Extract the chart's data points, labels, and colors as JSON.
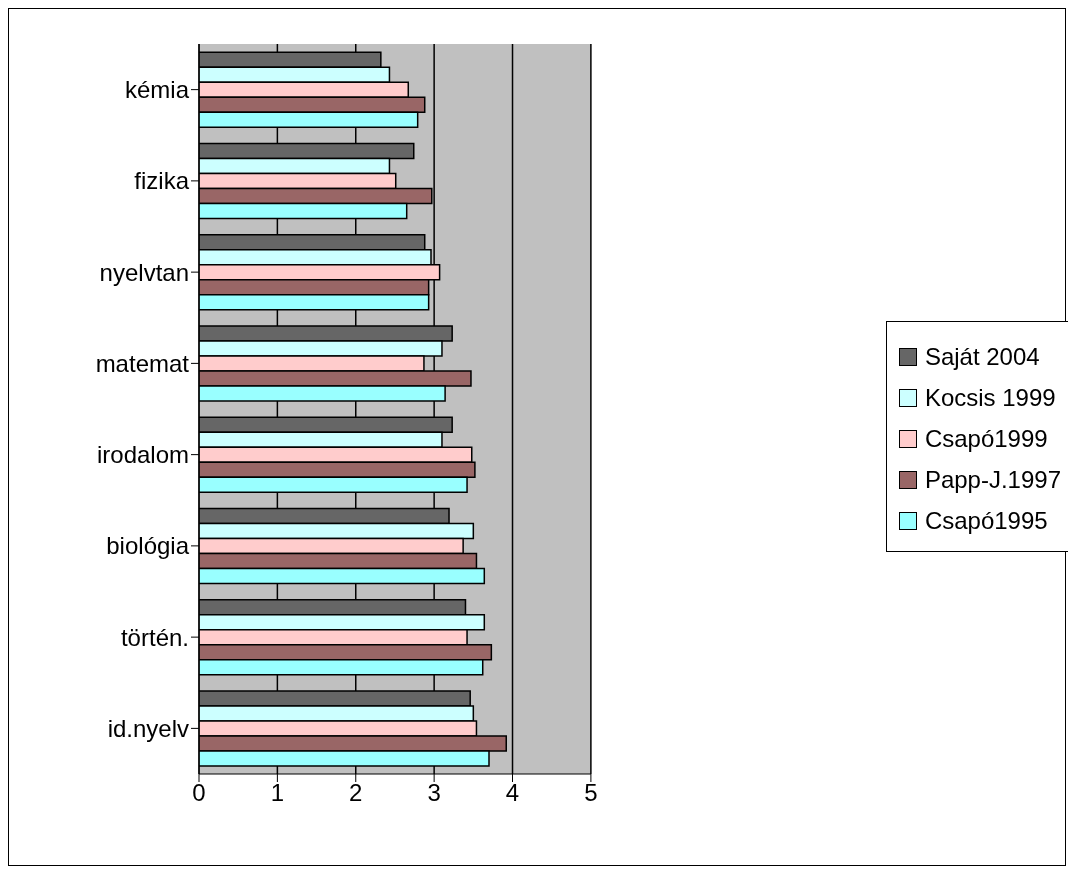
{
  "chart_data": {
    "type": "bar",
    "orientation": "horizontal",
    "categories": [
      "kémia",
      "fizika",
      "nyelvtan",
      "matemat",
      "irodalom",
      "biológia",
      "történ.",
      "id.nyelv"
    ],
    "series": [
      {
        "name": "Saját 2004",
        "color": "#666666",
        "values": [
          2.32,
          2.74,
          2.88,
          3.23,
          3.23,
          3.19,
          3.4,
          3.46
        ]
      },
      {
        "name": "Kocsis 1999",
        "color": "#ccffff",
        "values": [
          2.43,
          2.43,
          2.96,
          3.1,
          3.1,
          3.5,
          3.64,
          3.5
        ]
      },
      {
        "name": "Csapó1999",
        "color": "#ffcccc",
        "values": [
          2.67,
          2.51,
          3.07,
          2.87,
          3.48,
          3.37,
          3.42,
          3.54
        ]
      },
      {
        "name": "Papp-J.1997",
        "color": "#996666",
        "values": [
          2.88,
          2.97,
          2.93,
          3.47,
          3.52,
          3.54,
          3.73,
          3.92
        ]
      },
      {
        "name": "Csapó1995",
        "color": "#99ffff",
        "values": [
          2.79,
          2.65,
          2.93,
          3.14,
          3.42,
          3.64,
          3.62,
          3.7
        ]
      }
    ],
    "xlim": [
      0,
      5
    ],
    "xticks": [
      0,
      1,
      2,
      3,
      4,
      5
    ],
    "grid": "x",
    "legend": "right"
  }
}
